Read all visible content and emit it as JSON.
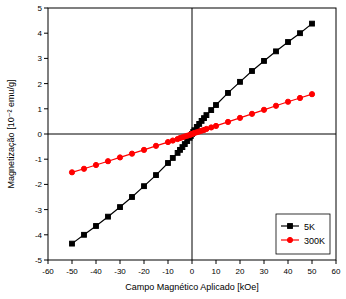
{
  "chart_data": {
    "type": "line",
    "x_label": "Campo Magnético Aplicado [kOe]",
    "y_label": "Magnetização [10⁻² emu/g]",
    "x": [
      -50,
      -45,
      -40,
      -35,
      -30,
      -25,
      -20,
      -15,
      -10,
      -8,
      -6,
      -5,
      -4,
      -3,
      -2,
      -1,
      -0.5,
      0,
      0.5,
      1,
      2,
      3,
      4,
      5,
      6,
      8,
      10,
      15,
      20,
      25,
      30,
      35,
      40,
      45,
      50
    ],
    "series": [
      {
        "name": "5K",
        "color": "#000000",
        "marker": "square",
        "line_style": "solid",
        "values": [
          -4.35,
          -4.0,
          -3.65,
          -3.28,
          -2.9,
          -2.5,
          -2.07,
          -1.63,
          -1.15,
          -0.95,
          -0.75,
          -0.63,
          -0.52,
          -0.4,
          -0.28,
          -0.15,
          -0.08,
          0,
          0.08,
          0.15,
          0.28,
          0.4,
          0.52,
          0.63,
          0.75,
          0.95,
          1.15,
          1.63,
          2.07,
          2.5,
          2.9,
          3.28,
          3.65,
          4.0,
          4.38
        ]
      },
      {
        "name": "300K",
        "color": "#ff0000",
        "marker": "circle",
        "line_style": "solid",
        "values": [
          -1.52,
          -1.38,
          -1.23,
          -1.08,
          -0.93,
          -0.78,
          -0.63,
          -0.47,
          -0.32,
          -0.26,
          -0.2,
          -0.16,
          -0.13,
          -0.1,
          -0.07,
          -0.04,
          -0.02,
          0,
          0.02,
          0.04,
          0.07,
          0.1,
          0.13,
          0.16,
          0.2,
          0.26,
          0.32,
          0.48,
          0.64,
          0.8,
          0.96,
          1.12,
          1.28,
          1.43,
          1.58
        ]
      }
    ],
    "xlim": [
      -60,
      60
    ],
    "xticks": [
      -60,
      -50,
      -40,
      -30,
      -20,
      -10,
      0,
      10,
      20,
      30,
      40,
      50,
      60
    ],
    "ylim": [
      -5,
      5
    ],
    "yticks": [
      -5,
      -4,
      -3,
      -2,
      -1,
      0,
      1,
      2,
      3,
      4,
      5
    ],
    "legend": "lower right",
    "grid": false
  }
}
